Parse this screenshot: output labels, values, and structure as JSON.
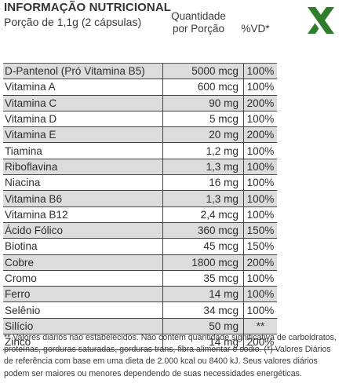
{
  "header": {
    "title": "INFORMAÇÃO NUTRICIONAL",
    "portion": "Porção de 1,1g (2 cápsulas)",
    "quantity_label_1": "Quantidade",
    "quantity_label_2": "por Porção",
    "vd_label": "%VD*"
  },
  "logo": {
    "icon": "x-logo-icon",
    "color": "#2f7d2c"
  },
  "rows": [
    {
      "name": "D-Pantenol (Pró Vitamina B5)",
      "qty": "5000 mcg",
      "vd": "100%"
    },
    {
      "name": "Vitamina A",
      "qty": "600 mcg",
      "vd": "100%"
    },
    {
      "name": "Vitamina C",
      "qty": "90 mg",
      "vd": "200%"
    },
    {
      "name": "Vitamina D",
      "qty": "5 mcg",
      "vd": "100%"
    },
    {
      "name": "Vitamina E",
      "qty": "20 mg",
      "vd": "200%"
    },
    {
      "name": "Tiamina",
      "qty": "1,2 mg",
      "vd": "100%"
    },
    {
      "name": "Riboflavina",
      "qty": "1,3 mg",
      "vd": "100%"
    },
    {
      "name": "Niacina",
      "qty": "16 mg",
      "vd": "100%"
    },
    {
      "name": "Vitamina B6",
      "qty": "1,3 mg",
      "vd": "100%"
    },
    {
      "name": "Vitamina B12",
      "qty": "2,4 mcg",
      "vd": "100%"
    },
    {
      "name": "Ácido Fólico",
      "qty": "360 mcg",
      "vd": "150%"
    },
    {
      "name": "Biotina",
      "qty": "45 mcg",
      "vd": "150%"
    },
    {
      "name": "Cobre",
      "qty": "1800 mcg",
      "vd": "200%"
    },
    {
      "name": "Cromo",
      "qty": "35 mcg",
      "vd": "100%"
    },
    {
      "name": "Ferro",
      "qty": "14 mg",
      "vd": "100%"
    },
    {
      "name": "Selênio",
      "qty": "34 mcg",
      "vd": "100%"
    },
    {
      "name": "Silício",
      "qty": "50 mg",
      "vd": "**"
    },
    {
      "name": "Zinco",
      "qty": "14 mg",
      "vd": "200%"
    }
  ],
  "footnote": "** Valores diários não estabelecidos. Não contém quantidade significativa de carboidratos, proteínas, gorduras saturadas, gorduras trans, fibra alimentar e sódio. (*) Valores Diários de referência com base em uma dieta de 2.000 kcal ou 8400 kJ. Seus valores diários podem ser maiores ou menores dependendo de suas necessidades energéticas."
}
